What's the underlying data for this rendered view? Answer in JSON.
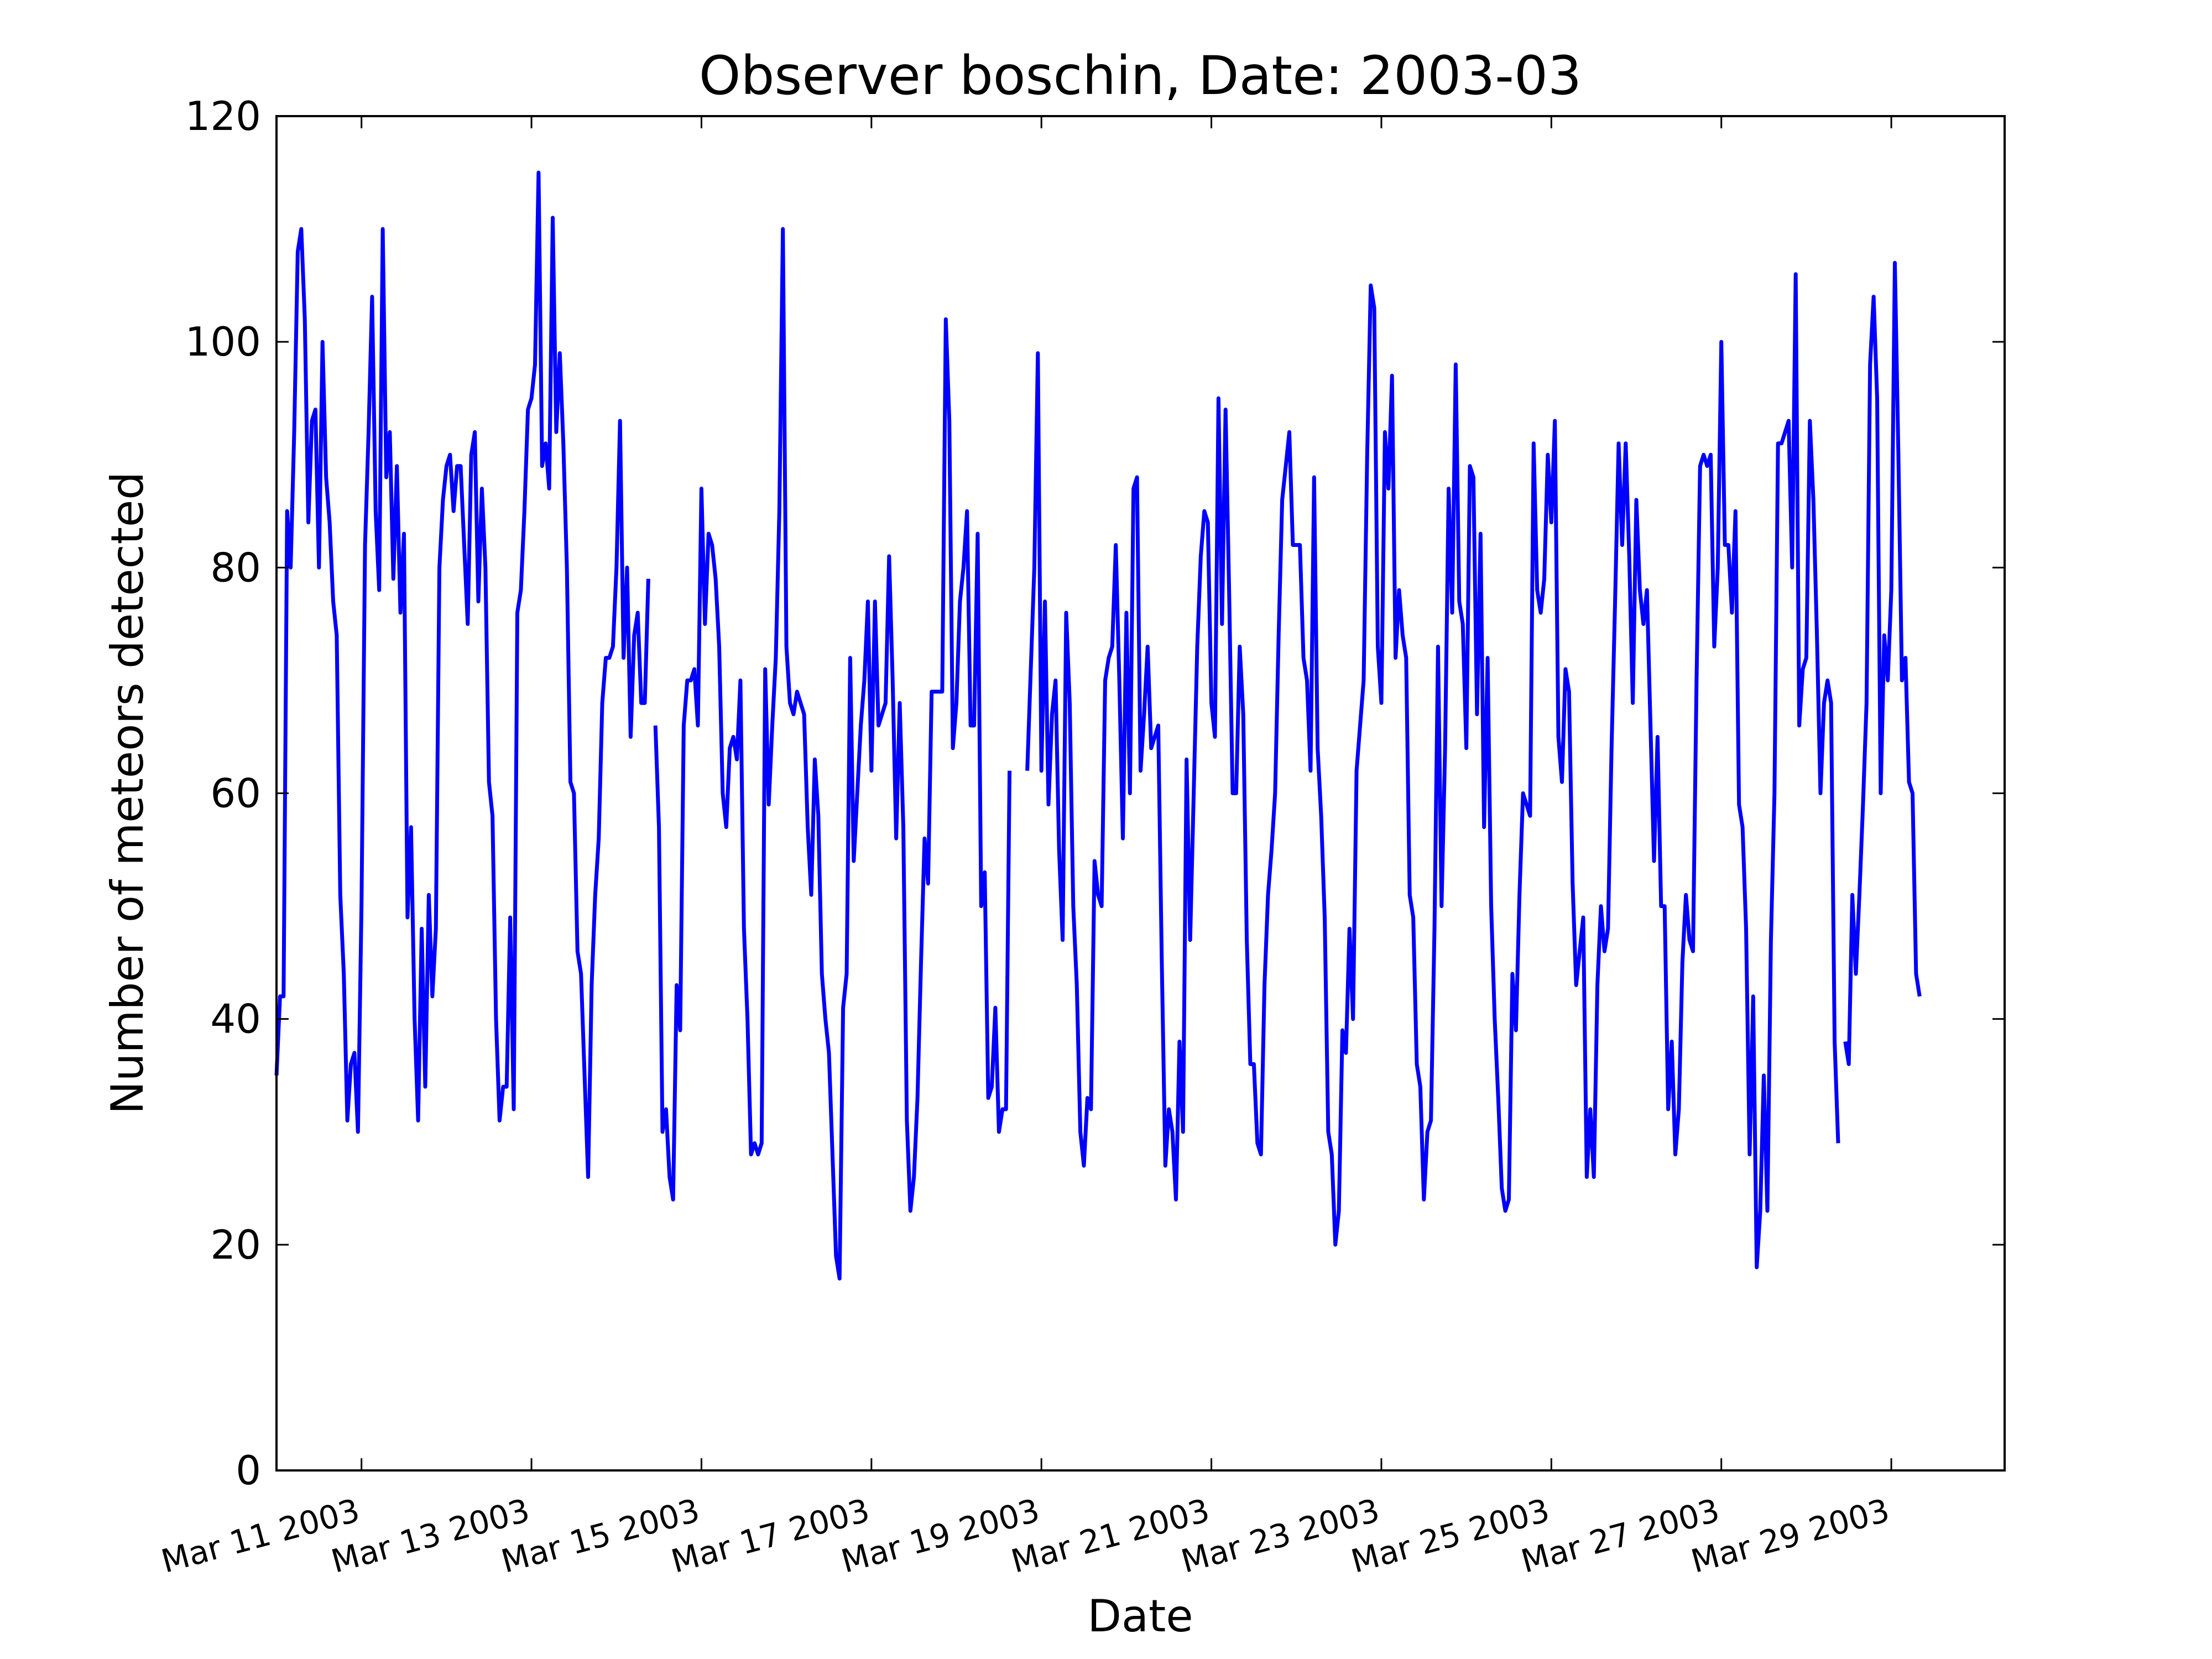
{
  "chart_data": {
    "type": "line",
    "title": "Observer boschin, Date: 2003-03",
    "xlabel": "Date",
    "ylabel": "Number of meteors detected",
    "xlim": [
      "2003-03-10",
      "2003-03-30 08:00"
    ],
    "ylim": [
      0,
      120
    ],
    "yticks": [
      0,
      20,
      40,
      60,
      80,
      100,
      120
    ],
    "xticks": [
      "2003-03-11",
      "2003-03-13",
      "2003-03-15",
      "2003-03-17",
      "2003-03-19",
      "2003-03-21",
      "2003-03-23",
      "2003-03-25",
      "2003-03-27",
      "2003-03-29"
    ],
    "xtick_labels": [
      "Mar 11 2003",
      "Mar 13 2003",
      "Mar 15 2003",
      "Mar 17 2003",
      "Mar 19 2003",
      "Mar 21 2003",
      "Mar 23 2003",
      "Mar 25 2003",
      "Mar 27 2003",
      "Mar 29 2003"
    ],
    "grid": false,
    "series": [
      {
        "color": "#0000ff",
        "x_start": "2003-03-10 00:00",
        "step_hours": 1,
        "values": [
          35,
          42,
          42,
          85,
          80,
          92,
          108,
          110,
          102,
          84,
          93,
          94,
          80,
          100,
          88,
          84,
          77,
          74,
          51,
          44,
          31,
          36,
          37,
          30,
          50,
          82,
          92,
          104,
          85,
          78,
          110,
          88,
          92,
          79,
          89,
          76,
          83,
          49,
          57,
          40,
          31,
          48,
          34,
          51,
          42,
          48,
          80,
          86,
          89,
          90,
          85,
          89,
          89,
          82,
          75,
          90,
          92,
          77,
          87,
          80,
          61,
          58,
          40,
          31,
          34,
          34,
          49,
          32,
          76,
          78,
          85,
          94,
          95,
          98,
          115,
          89,
          91,
          87,
          111,
          92,
          99,
          91,
          80,
          61,
          60,
          46,
          44,
          35,
          26,
          43,
          51,
          56,
          68,
          72,
          72,
          73,
          80,
          93,
          72,
          80,
          65,
          74,
          76,
          68,
          68,
          79,
          null,
          66,
          57,
          30,
          32,
          26,
          24,
          43,
          39,
          66,
          70,
          70,
          71,
          66,
          87,
          75,
          83,
          82,
          79,
          73,
          60,
          57,
          64,
          65,
          63,
          70,
          48,
          40,
          28,
          29,
          28,
          29,
          71,
          59,
          66,
          72,
          85,
          110,
          73,
          68,
          67,
          69,
          68,
          67,
          57,
          51,
          63,
          58,
          44,
          40,
          37,
          28,
          19,
          17,
          41,
          44,
          72,
          54,
          60,
          66,
          70,
          77,
          62,
          77,
          66,
          67,
          68,
          81,
          70,
          56,
          68,
          57,
          31,
          23,
          26,
          33,
          45,
          56,
          52,
          69,
          69,
          69,
          69,
          102,
          93,
          64,
          68,
          77,
          80,
          85,
          66,
          66,
          83,
          50,
          53,
          33,
          34,
          41,
          30,
          32,
          32,
          62,
          null,
          null,
          null,
          null,
          62,
          71,
          80,
          99,
          62,
          77,
          59,
          67,
          70,
          55,
          47,
          76,
          68,
          50,
          43,
          30,
          27,
          33,
          32,
          54,
          51,
          50,
          70,
          72,
          73,
          82,
          70,
          56,
          76,
          60,
          87,
          88,
          62,
          67,
          73,
          64,
          65,
          66,
          45,
          27,
          32,
          30,
          24,
          38,
          30,
          63,
          47,
          60,
          73,
          81,
          85,
          84,
          68,
          65,
          95,
          75,
          94,
          78,
          60,
          60,
          73,
          67,
          47,
          36,
          36,
          29,
          28,
          43,
          51,
          55,
          60,
          74,
          86,
          89,
          92,
          82,
          82,
          82,
          72,
          70,
          62,
          88,
          64,
          58,
          49,
          30,
          28,
          20,
          23,
          39,
          37,
          48,
          40,
          62,
          66,
          70,
          90,
          105,
          103,
          73,
          68,
          92,
          87,
          97,
          72,
          78,
          74,
          72,
          51,
          49,
          36,
          34,
          24,
          30,
          31,
          48,
          73,
          50,
          64,
          87,
          76,
          98,
          77,
          75,
          64,
          89,
          88,
          67,
          83,
          57,
          72,
          50,
          40,
          33,
          25,
          23,
          24,
          44,
          39,
          51,
          60,
          59,
          58,
          91,
          78,
          76,
          79,
          90,
          84,
          93,
          65,
          61,
          71,
          69,
          52,
          43,
          46,
          49,
          26,
          32,
          26,
          43,
          50,
          46,
          48,
          64,
          77,
          91,
          82,
          91,
          81,
          68,
          86,
          78,
          75,
          78,
          66,
          54,
          65,
          50,
          50,
          32,
          38,
          28,
          32,
          45,
          51,
          47,
          46,
          70,
          89,
          90,
          89,
          90,
          73,
          80,
          100,
          82,
          82,
          76,
          85,
          59,
          57,
          48,
          28,
          42,
          18,
          23,
          35,
          23,
          47,
          60,
          91,
          91,
          92,
          93,
          80,
          106,
          66,
          71,
          72,
          93,
          86,
          74,
          60,
          68,
          70,
          68,
          38,
          29,
          null,
          38,
          36,
          51,
          44,
          51,
          59,
          68,
          98,
          104,
          95,
          60,
          74,
          70,
          78,
          107,
          90,
          70,
          72,
          61,
          60,
          44,
          42
        ]
      }
    ]
  }
}
